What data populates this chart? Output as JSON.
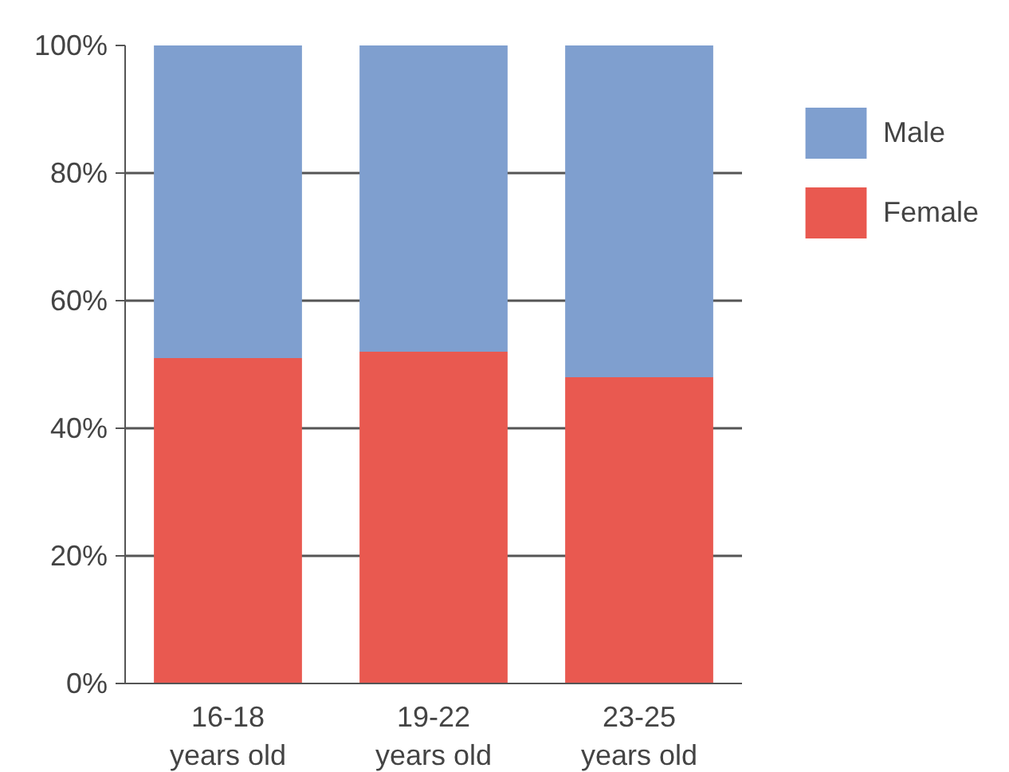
{
  "chart_data": {
    "type": "bar",
    "stacked": true,
    "categories": [
      "16-18\nyears old",
      "19-22\nyears old",
      "23-25\nyears old"
    ],
    "series": [
      {
        "name": "Female",
        "color": "#e95950",
        "values": [
          51,
          52,
          48
        ]
      },
      {
        "name": "Male",
        "color": "#7f9fcf",
        "values": [
          49,
          48,
          52
        ]
      }
    ],
    "ylim": [
      0,
      100
    ],
    "yticks": [
      {
        "value": 0,
        "label": "0%"
      },
      {
        "value": 20,
        "label": "20%"
      },
      {
        "value": 40,
        "label": "40%"
      },
      {
        "value": 60,
        "label": "60%"
      },
      {
        "value": 80,
        "label": "80%"
      },
      {
        "value": 100,
        "label": "100%"
      }
    ],
    "grid": "y",
    "legend": "top right"
  }
}
